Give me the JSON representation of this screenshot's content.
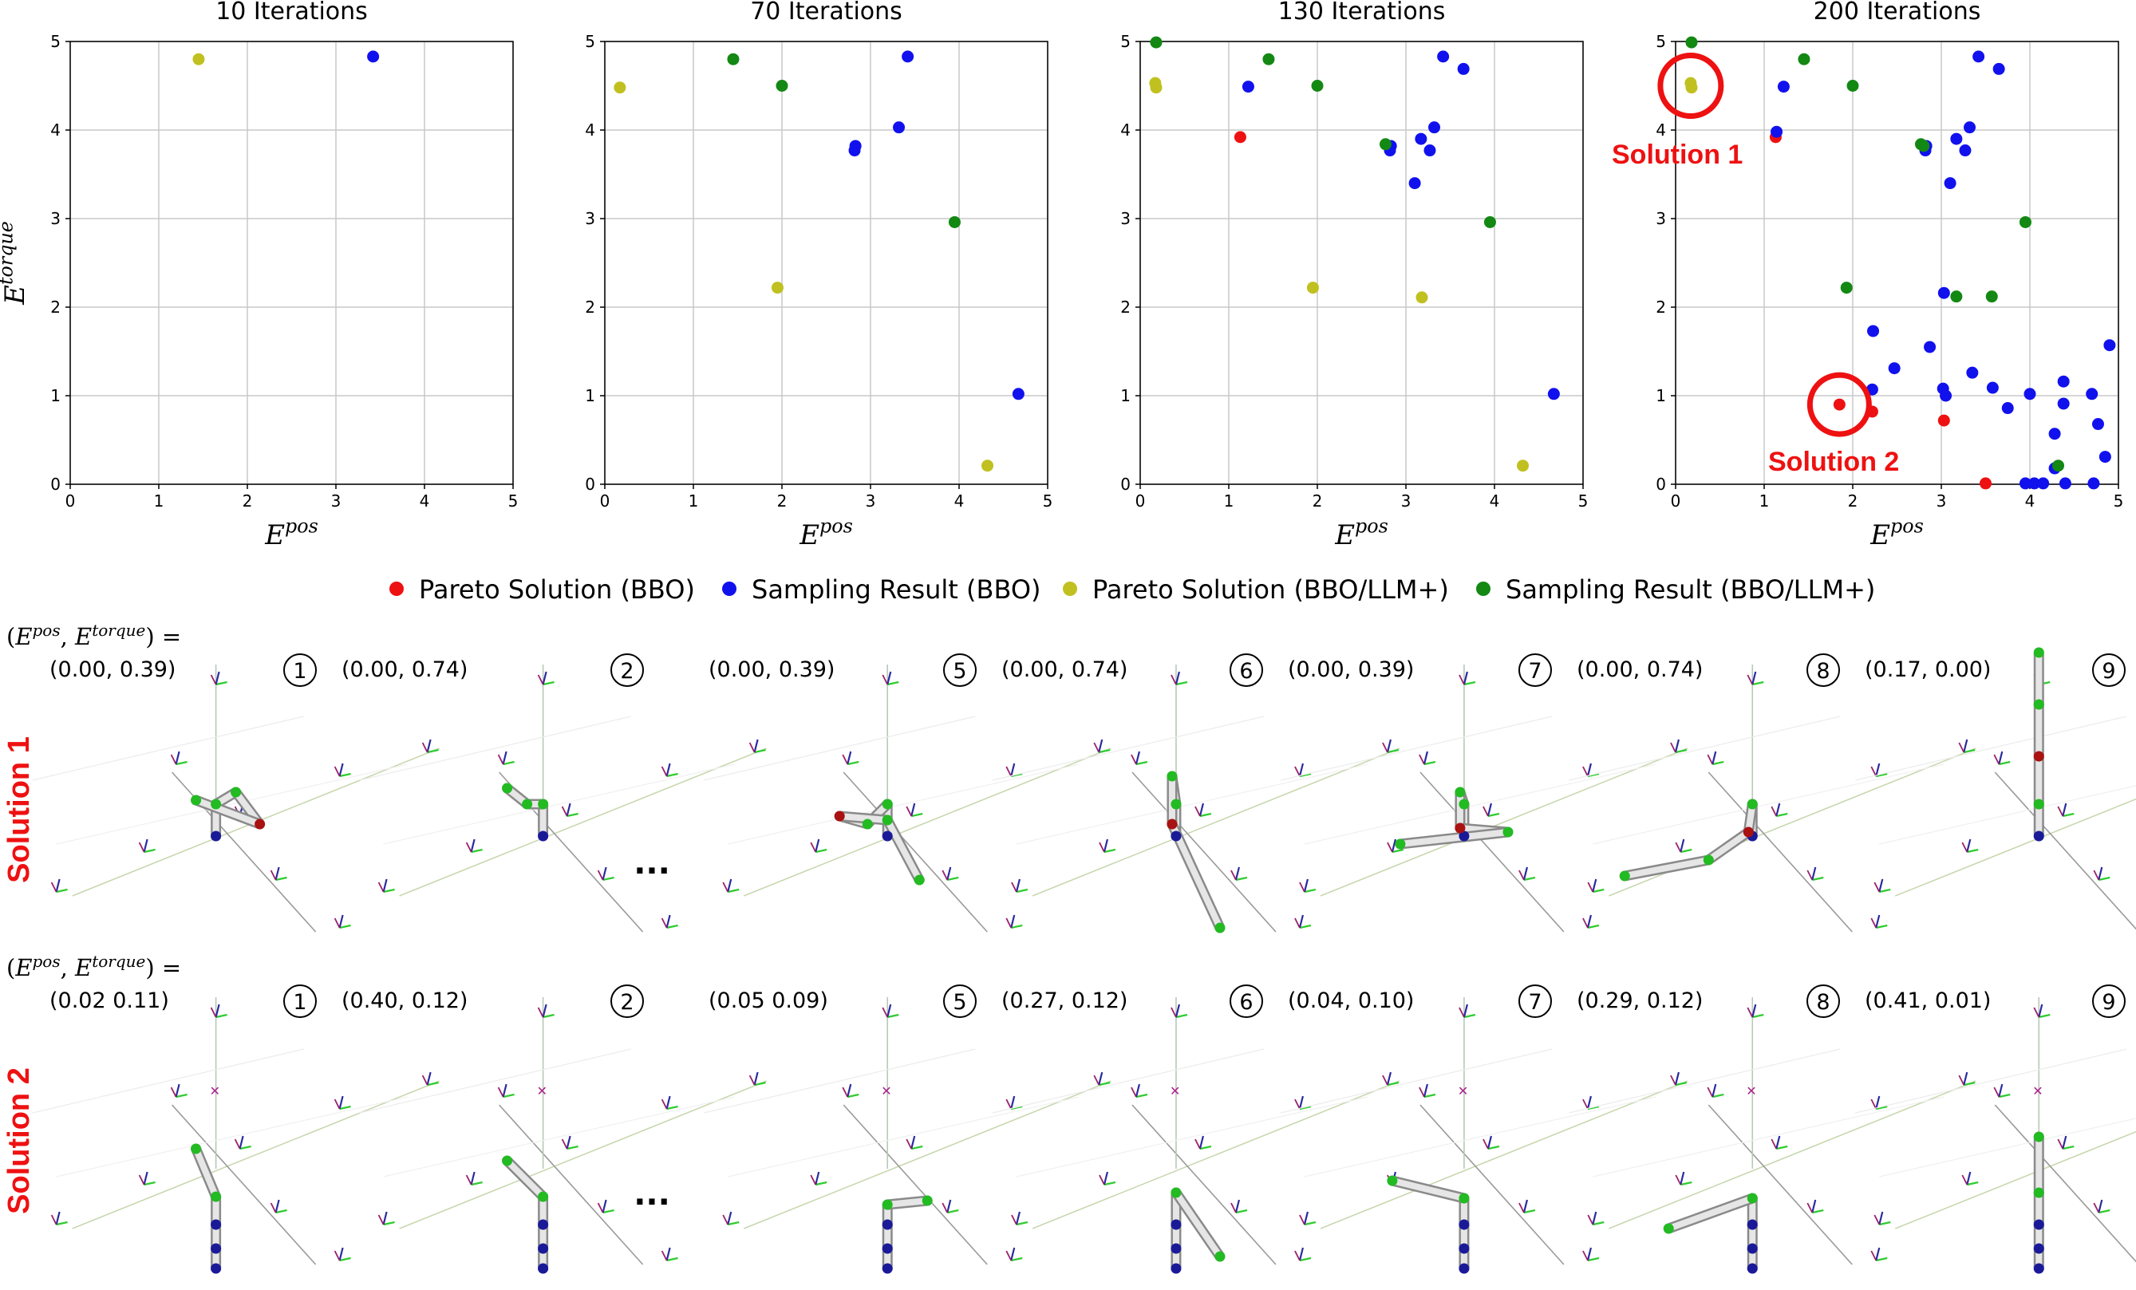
{
  "legend": [
    {
      "label": "Pareto Solution (BBO)",
      "color": "#ee1111"
    },
    {
      "label": "Sampling Result (BBO)",
      "color": "#1111ee"
    },
    {
      "label": "Pareto Solution (BBO/LLM+)",
      "color": "#c0c020"
    },
    {
      "label": "Sampling Result (BBO/LLM+)",
      "color": "#138813"
    }
  ],
  "colors": {
    "pareto_bbo": "#ee1111",
    "sampling_bbo": "#1111ee",
    "pareto_llm": "#c0c020",
    "sampling_llm": "#138813",
    "annotation": "#ee1111"
  },
  "chart_data": [
    {
      "type": "scatter",
      "title": "10 Iterations",
      "xlabel_base": "E",
      "xlabel_sup": "pos",
      "ylabel_base": "E",
      "ylabel_sup": "torque",
      "xlim": [
        0,
        5
      ],
      "ylim": [
        0,
        5
      ],
      "xticks": [
        "0",
        "1",
        "2",
        "3",
        "4",
        "5"
      ],
      "yticks": [
        "0",
        "1",
        "2",
        "3",
        "4",
        "5"
      ],
      "grid": true,
      "series": [
        {
          "name": "Pareto Solution (BBO)",
          "points": []
        },
        {
          "name": "Sampling Result (BBO)",
          "points": [
            [
              3.42,
              4.83
            ]
          ]
        },
        {
          "name": "Pareto Solution (BBO/LLM+)",
          "points": [
            [
              1.45,
              4.8
            ]
          ]
        },
        {
          "name": "Sampling Result (BBO/LLM+)",
          "points": []
        }
      ]
    },
    {
      "type": "scatter",
      "title": "70 Iterations",
      "xlabel_base": "E",
      "xlabel_sup": "pos",
      "ylabel_base": "",
      "ylabel_sup": "",
      "xlim": [
        0,
        5
      ],
      "ylim": [
        0,
        5
      ],
      "xticks": [
        "0",
        "1",
        "2",
        "3",
        "4",
        "5"
      ],
      "yticks": [
        "0",
        "1",
        "2",
        "3",
        "4",
        "5"
      ],
      "grid": true,
      "series": [
        {
          "name": "Pareto Solution (BBO)",
          "points": []
        },
        {
          "name": "Sampling Result (BBO)",
          "points": [
            [
              3.42,
              4.83
            ],
            [
              3.32,
              4.03
            ],
            [
              2.83,
              3.82
            ],
            [
              2.82,
              3.77
            ],
            [
              4.67,
              1.02
            ]
          ]
        },
        {
          "name": "Pareto Solution (BBO/LLM+)",
          "points": [
            [
              0.17,
              4.48
            ],
            [
              1.95,
              2.22
            ],
            [
              4.32,
              0.21
            ]
          ]
        },
        {
          "name": "Sampling Result (BBO/LLM+)",
          "points": [
            [
              1.45,
              4.8
            ],
            [
              2.0,
              4.5
            ],
            [
              3.95,
              2.96
            ]
          ]
        }
      ]
    },
    {
      "type": "scatter",
      "title": "130 Iterations",
      "xlabel_base": "E",
      "xlabel_sup": "pos",
      "ylabel_base": "",
      "ylabel_sup": "",
      "xlim": [
        0,
        5
      ],
      "ylim": [
        0,
        5
      ],
      "xticks": [
        "0",
        "1",
        "2",
        "3",
        "4",
        "5"
      ],
      "yticks": [
        "0",
        "1",
        "2",
        "3",
        "4",
        "5"
      ],
      "grid": true,
      "series": [
        {
          "name": "Pareto Solution (BBO)",
          "points": [
            [
              1.13,
              3.92
            ]
          ]
        },
        {
          "name": "Sampling Result (BBO)",
          "points": [
            [
              1.22,
              4.49
            ],
            [
              3.42,
              4.83
            ],
            [
              3.65,
              4.69
            ],
            [
              3.32,
              4.03
            ],
            [
              3.17,
              3.9
            ],
            [
              3.27,
              3.77
            ],
            [
              2.83,
              3.82
            ],
            [
              2.82,
              3.77
            ],
            [
              3.1,
              3.4
            ],
            [
              4.67,
              1.02
            ]
          ]
        },
        {
          "name": "Pareto Solution (BBO/LLM+)",
          "points": [
            [
              0.17,
              4.53
            ],
            [
              0.18,
              4.48
            ],
            [
              1.95,
              2.22
            ],
            [
              3.18,
              2.11
            ],
            [
              4.32,
              0.21
            ]
          ]
        },
        {
          "name": "Sampling Result (BBO/LLM+)",
          "points": [
            [
              0.18,
              4.99
            ],
            [
              1.45,
              4.8
            ],
            [
              2.0,
              4.5
            ],
            [
              2.77,
              3.84
            ],
            [
              3.95,
              2.96
            ]
          ]
        }
      ]
    },
    {
      "type": "scatter",
      "title": "200 Iterations",
      "xlabel_base": "E",
      "xlabel_sup": "pos",
      "ylabel_base": "",
      "ylabel_sup": "",
      "xlim": [
        0,
        5
      ],
      "ylim": [
        0,
        5
      ],
      "xticks": [
        "0",
        "1",
        "2",
        "3",
        "4",
        "5"
      ],
      "yticks": [
        "0",
        "1",
        "2",
        "3",
        "4",
        "5"
      ],
      "grid": true,
      "series": [
        {
          "name": "Pareto Solution (BBO)",
          "points": [
            [
              1.13,
              3.92
            ],
            [
              1.85,
              0.9
            ],
            [
              2.22,
              0.82
            ],
            [
              3.03,
              0.72
            ],
            [
              3.5,
              0.01
            ]
          ]
        },
        {
          "name": "Sampling Result (BBO)",
          "points": [
            [
              1.14,
              3.98
            ],
            [
              1.22,
              4.49
            ],
            [
              3.42,
              4.83
            ],
            [
              3.65,
              4.69
            ],
            [
              3.32,
              4.03
            ],
            [
              3.17,
              3.9
            ],
            [
              3.27,
              3.77
            ],
            [
              2.83,
              3.82
            ],
            [
              2.82,
              3.77
            ],
            [
              3.1,
              3.4
            ],
            [
              3.03,
              2.16
            ],
            [
              2.23,
              1.73
            ],
            [
              2.47,
              1.31
            ],
            [
              2.87,
              1.55
            ],
            [
              2.22,
              1.07
            ],
            [
              3.02,
              1.08
            ],
            [
              3.05,
              1.0
            ],
            [
              3.35,
              1.26
            ],
            [
              3.58,
              1.09
            ],
            [
              3.75,
              0.86
            ],
            [
              4.0,
              1.02
            ],
            [
              4.38,
              1.16
            ],
            [
              4.7,
              1.02
            ],
            [
              4.9,
              1.57
            ],
            [
              4.77,
              0.68
            ],
            [
              4.38,
              0.91
            ],
            [
              4.28,
              0.57
            ],
            [
              4.85,
              0.31
            ],
            [
              4.28,
              0.18
            ],
            [
              3.95,
              0.01
            ],
            [
              4.05,
              0.01
            ],
            [
              4.15,
              0.01
            ],
            [
              4.4,
              0.01
            ],
            [
              4.72,
              0.01
            ]
          ]
        },
        {
          "name": "Pareto Solution (BBO/LLM+)",
          "points": [
            [
              0.17,
              4.53
            ],
            [
              0.18,
              4.48
            ]
          ]
        },
        {
          "name": "Sampling Result (BBO/LLM+)",
          "points": [
            [
              0.18,
              4.99
            ],
            [
              1.45,
              4.8
            ],
            [
              2.0,
              4.5
            ],
            [
              2.77,
              3.84
            ],
            [
              2.8,
              3.82
            ],
            [
              3.95,
              2.96
            ],
            [
              1.93,
              2.22
            ],
            [
              3.17,
              2.12
            ],
            [
              3.57,
              2.12
            ],
            [
              4.32,
              0.21
            ]
          ]
        }
      ],
      "annotations": [
        {
          "label": "Solution 1",
          "x": 0.17,
          "y": 4.5
        },
        {
          "label": "Solution 2",
          "x": 1.85,
          "y": 0.9
        }
      ]
    }
  ],
  "robot_panels": {
    "formula_base": "E",
    "formula_sup1": "pos",
    "formula_sup2": "torque",
    "ellipsis": "...",
    "rows": [
      {
        "label": "Solution 1",
        "frames": [
          {
            "index": "1",
            "values": "(0.00, 0.39)"
          },
          {
            "index": "2",
            "values": "(0.00, 0.74)"
          },
          {
            "index": "5",
            "values": "(0.00, 0.39)"
          },
          {
            "index": "6",
            "values": "(0.00, 0.74)"
          },
          {
            "index": "7",
            "values": "(0.00, 0.39)"
          },
          {
            "index": "8",
            "values": "(0.00, 0.74)"
          },
          {
            "index": "9",
            "values": "(0.17, 0.00)"
          }
        ]
      },
      {
        "label": "Solution 2",
        "frames": [
          {
            "index": "1",
            "values": "(0.02 0.11)"
          },
          {
            "index": "2",
            "values": "(0.40, 0.12)"
          },
          {
            "index": "5",
            "values": "(0.05 0.09)"
          },
          {
            "index": "6",
            "values": "(0.27, 0.12)"
          },
          {
            "index": "7",
            "values": "(0.04, 0.10)"
          },
          {
            "index": "8",
            "values": "(0.29, 0.12)"
          },
          {
            "index": "9",
            "values": "(0.41, 0.01)"
          }
        ]
      }
    ]
  }
}
